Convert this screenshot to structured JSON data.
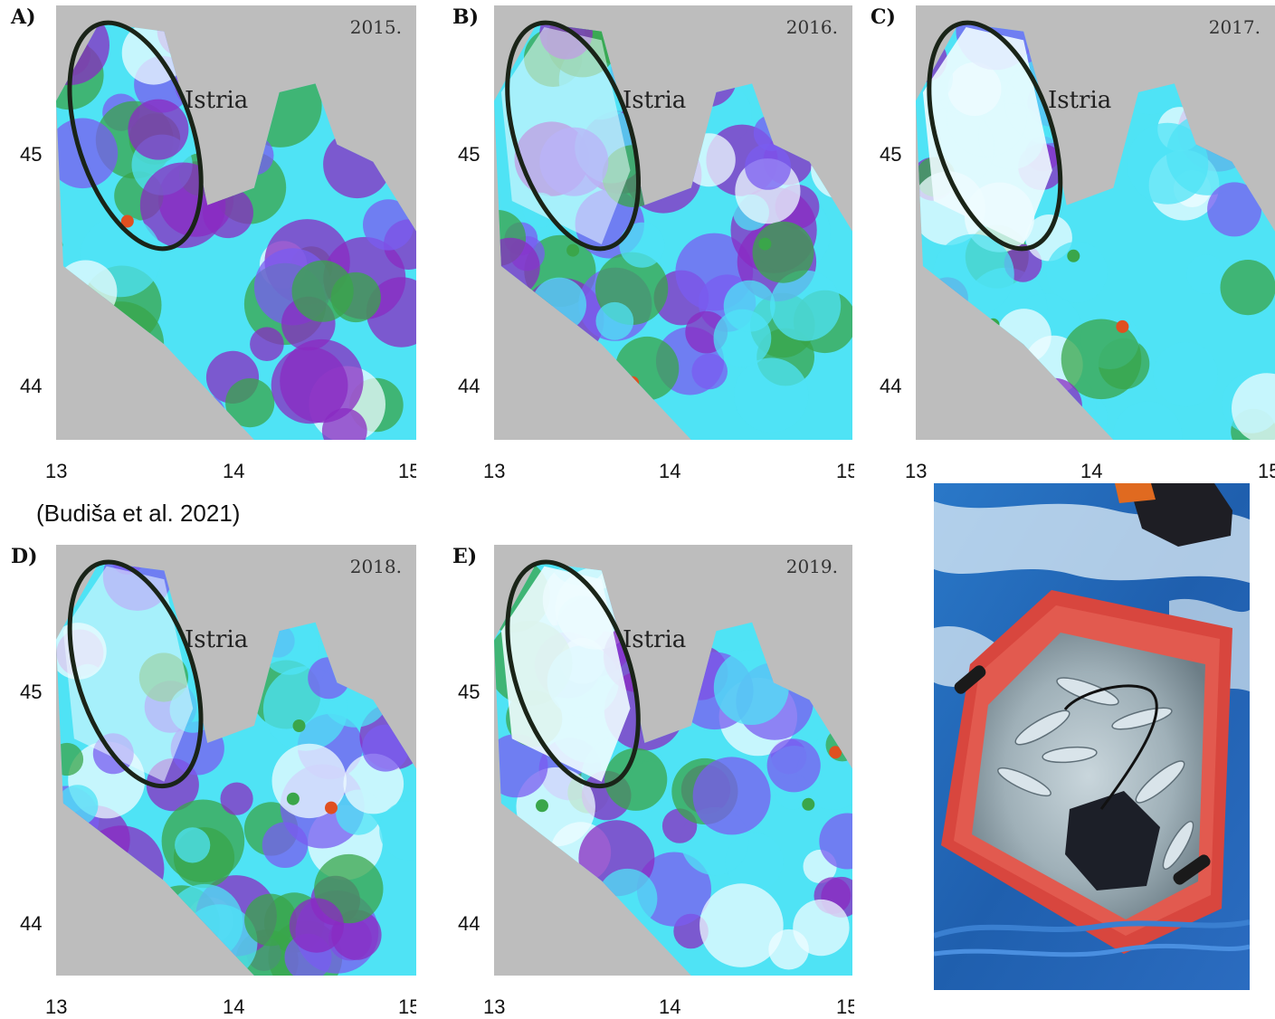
{
  "panels": [
    {
      "letter": "A)",
      "year": "2015.",
      "place": "Istria",
      "yticks": [
        "45",
        "44"
      ],
      "xticks": [
        "13",
        "14",
        "15"
      ],
      "fill": "high"
    },
    {
      "letter": "B)",
      "year": "2016.",
      "place": "Istria",
      "yticks": [
        "45",
        "44"
      ],
      "xticks": [
        "13",
        "14",
        "15"
      ],
      "fill": "mid"
    },
    {
      "letter": "C)",
      "year": "2017.",
      "place": "Istria",
      "yticks": [
        "45",
        "44"
      ],
      "xticks": [
        "13",
        "14",
        "15"
      ],
      "fill": "low"
    },
    {
      "letter": "D)",
      "year": "2018.",
      "place": "Istria",
      "yticks": [
        "45",
        "44"
      ],
      "xticks": [
        "13",
        "14",
        "15"
      ],
      "fill": "mid"
    },
    {
      "letter": "E)",
      "year": "2019.",
      "place": "Istria",
      "yticks": [
        "45",
        "44"
      ],
      "xticks": [
        "13",
        "14",
        "15"
      ],
      "fill": "low"
    }
  ],
  "citation": "(Budiša et al. 2021)",
  "colors": {
    "land": "#bdbdbd",
    "very_low": "#eefcff",
    "low": "#4fe3f5",
    "medium": "#7a5cf0",
    "high": "#8a2bc2",
    "very_high": "#3aa64a",
    "peak": "#e05020",
    "ellipse": "#1a2418"
  }
}
